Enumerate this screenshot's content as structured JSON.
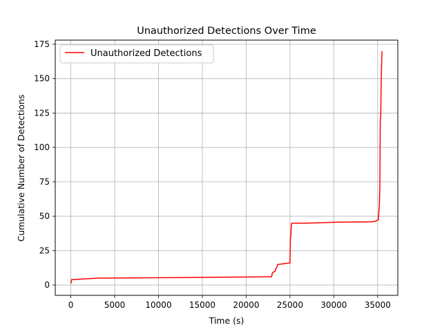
{
  "chart_data": {
    "type": "line",
    "title": "Unauthorized Detections Over Time",
    "xlabel": "Time (s)",
    "ylabel": "Cumulative Number of Detections",
    "xlim": [
      -1780,
      37300
    ],
    "ylim": [
      -7.5,
      178
    ],
    "xticks": [
      0,
      5000,
      10000,
      15000,
      20000,
      25000,
      30000,
      35000
    ],
    "yticks": [
      0,
      25,
      50,
      75,
      100,
      125,
      150,
      175
    ],
    "grid": true,
    "legend": {
      "position": "top-left"
    },
    "series": [
      {
        "name": "Unauthorized Detections",
        "color": "#ff0000",
        "x": [
          0,
          100,
          500,
          3000,
          10000,
          22500,
          22900,
          23000,
          23300,
          23400,
          23500,
          23600,
          23700,
          24900,
          25000,
          25050,
          25100,
          25150,
          25200,
          27000,
          30000,
          34400,
          34800,
          35100,
          35150,
          35200,
          35250,
          35300,
          35350,
          35400,
          35450,
          35500
        ],
        "y": [
          1,
          4,
          4,
          5,
          5.3,
          6,
          6,
          9,
          10,
          12,
          13,
          15,
          15,
          16,
          16,
          34,
          36,
          44,
          45,
          45,
          45.6,
          46,
          46.5,
          47.5,
          55,
          58,
          71,
          120,
          122,
          145,
          160,
          170
        ]
      }
    ]
  }
}
